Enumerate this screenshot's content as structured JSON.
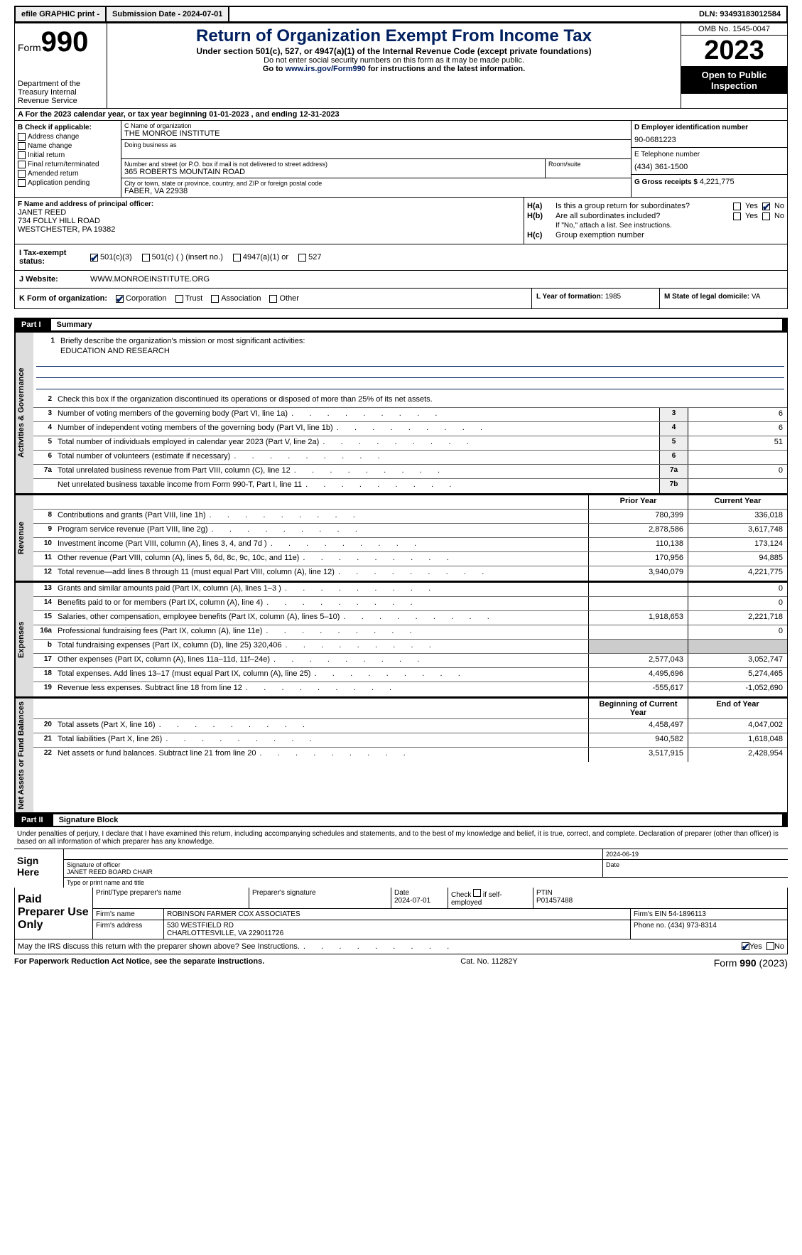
{
  "topbar": {
    "efile": "efile GRAPHIC print -",
    "subdate_lbl": "Submission Date - ",
    "subdate": "2024-07-01",
    "dln_lbl": "DLN: ",
    "dln": "93493183012584"
  },
  "header": {
    "form_word": "Form",
    "form_num": "990",
    "dept": "Department of the Treasury Internal Revenue Service",
    "title": "Return of Organization Exempt From Income Tax",
    "sub": "Under section 501(c), 527, or 4947(a)(1) of the Internal Revenue Code (except private foundations)",
    "note": "Do not enter social security numbers on this form as it may be made public.",
    "go_pre": "Go to ",
    "go_link": "www.irs.gov/Form990",
    "go_post": " for instructions and the latest information.",
    "omb": "OMB No. 1545-0047",
    "year": "2023",
    "open": "Open to Public Inspection"
  },
  "row_a": "A For the 2023 calendar year, or tax year beginning 01-01-2023    , and ending 12-31-2023",
  "box_b": {
    "lbl": "B Check if applicable:",
    "items": [
      "Address change",
      "Name change",
      "Initial return",
      "Final return/terminated",
      "Amended return",
      "Application pending"
    ]
  },
  "box_c": {
    "name_lbl": "C Name of organization",
    "name": "THE MONROE INSTITUTE",
    "dba_lbl": "Doing business as",
    "addr_lbl": "Number and street (or P.O. box if mail is not delivered to street address)",
    "addr": "365 ROBERTS MOUNTAIN ROAD",
    "room_lbl": "Room/suite",
    "city_lbl": "City or town, state or province, country, and ZIP or foreign postal code",
    "city": "FABER, VA  22938"
  },
  "box_d": {
    "ein_lbl": "D Employer identification number",
    "ein": "90-0681223",
    "tel_lbl": "E Telephone number",
    "tel": "(434) 361-1500",
    "gross_lbl": "G Gross receipts $ ",
    "gross": "4,221,775"
  },
  "box_f": {
    "lbl": "F  Name and address of principal officer:",
    "name": "JANET REED",
    "addr1": "734 FOLLY HILL ROAD",
    "addr2": "WESTCHESTER, PA  19382"
  },
  "box_h": {
    "ha_lbl": "H(a)",
    "ha_txt": "Is this a group return for subordinates?",
    "hb_lbl": "H(b)",
    "hb_txt": "Are all subordinates included?",
    "hb_note": "If \"No,\" attach a list. See instructions.",
    "hc_lbl": "H(c)",
    "hc_txt": "Group exemption number",
    "yes": "Yes",
    "no": "No"
  },
  "row_i": {
    "lbl": "I   Tax-exempt status:",
    "o1": "501(c)(3)",
    "o2": "501(c) (  ) (insert no.)",
    "o3": "4947(a)(1) or",
    "o4": "527"
  },
  "row_j": {
    "lbl": "J   Website:",
    "val": "WWW.MONROEINSTITUTE.ORG"
  },
  "row_k": {
    "lbl": "K Form of organization:",
    "o1": "Corporation",
    "o2": "Trust",
    "o3": "Association",
    "o4": "Other",
    "l_lbl": "L Year of formation: ",
    "l_val": "1985",
    "m_lbl": "M State of legal domicile: ",
    "m_val": "VA"
  },
  "part1": {
    "num": "Part I",
    "title": "Summary"
  },
  "vtabs": {
    "gov": "Activities & Governance",
    "rev": "Revenue",
    "exp": "Expenses",
    "net": "Net Assets or Fund Balances"
  },
  "summary": {
    "l1_lbl": "Briefly describe the organization's mission or most significant activities:",
    "l1_val": "EDUCATION AND RESEARCH",
    "l2": "Check this box      if the organization discontinued its operations or disposed of more than 25% of its net assets.",
    "rows_gov": [
      {
        "n": "3",
        "d": "Number of voting members of the governing body (Part VI, line 1a)",
        "box": "3",
        "v": "6"
      },
      {
        "n": "4",
        "d": "Number of independent voting members of the governing body (Part VI, line 1b)",
        "box": "4",
        "v": "6"
      },
      {
        "n": "5",
        "d": "Total number of individuals employed in calendar year 2023 (Part V, line 2a)",
        "box": "5",
        "v": "51"
      },
      {
        "n": "6",
        "d": "Total number of volunteers (estimate if necessary)",
        "box": "6",
        "v": ""
      },
      {
        "n": "7a",
        "d": "Total unrelated business revenue from Part VIII, column (C), line 12",
        "box": "7a",
        "v": "0"
      },
      {
        "n": "",
        "d": "Net unrelated business taxable income from Form 990-T, Part I, line 11",
        "box": "7b",
        "v": ""
      }
    ],
    "hdr_prior": "Prior Year",
    "hdr_curr": "Current Year",
    "rows_rev": [
      {
        "n": "8",
        "d": "Contributions and grants (Part VIII, line 1h)",
        "p": "780,399",
        "c": "336,018"
      },
      {
        "n": "9",
        "d": "Program service revenue (Part VIII, line 2g)",
        "p": "2,878,586",
        "c": "3,617,748"
      },
      {
        "n": "10",
        "d": "Investment income (Part VIII, column (A), lines 3, 4, and 7d )",
        "p": "110,138",
        "c": "173,124"
      },
      {
        "n": "11",
        "d": "Other revenue (Part VIII, column (A), lines 5, 6d, 8c, 9c, 10c, and 11e)",
        "p": "170,956",
        "c": "94,885"
      },
      {
        "n": "12",
        "d": "Total revenue—add lines 8 through 11 (must equal Part VIII, column (A), line 12)",
        "p": "3,940,079",
        "c": "4,221,775"
      }
    ],
    "rows_exp": [
      {
        "n": "13",
        "d": "Grants and similar amounts paid (Part IX, column (A), lines 1–3 )",
        "p": "",
        "c": "0"
      },
      {
        "n": "14",
        "d": "Benefits paid to or for members (Part IX, column (A), line 4)",
        "p": "",
        "c": "0"
      },
      {
        "n": "15",
        "d": "Salaries, other compensation, employee benefits (Part IX, column (A), lines 5–10)",
        "p": "1,918,653",
        "c": "2,221,718"
      },
      {
        "n": "16a",
        "d": "Professional fundraising fees (Part IX, column (A), line 11e)",
        "p": "",
        "c": "0"
      },
      {
        "n": "b",
        "d": "Total fundraising expenses (Part IX, column (D), line 25) 320,406",
        "p": "shade",
        "c": "shade"
      },
      {
        "n": "17",
        "d": "Other expenses (Part IX, column (A), lines 11a–11d, 11f–24e)",
        "p": "2,577,043",
        "c": "3,052,747"
      },
      {
        "n": "18",
        "d": "Total expenses. Add lines 13–17 (must equal Part IX, column (A), line 25)",
        "p": "4,495,696",
        "c": "5,274,465"
      },
      {
        "n": "19",
        "d": "Revenue less expenses. Subtract line 18 from line 12",
        "p": "-555,617",
        "c": "-1,052,690"
      }
    ],
    "hdr_beg": "Beginning of Current Year",
    "hdr_end": "End of Year",
    "rows_net": [
      {
        "n": "20",
        "d": "Total assets (Part X, line 16)",
        "p": "4,458,497",
        "c": "4,047,002"
      },
      {
        "n": "21",
        "d": "Total liabilities (Part X, line 26)",
        "p": "940,582",
        "c": "1,618,048"
      },
      {
        "n": "22",
        "d": "Net assets or fund balances. Subtract line 21 from line 20",
        "p": "3,517,915",
        "c": "2,428,954"
      }
    ]
  },
  "part2": {
    "num": "Part II",
    "title": "Signature Block"
  },
  "sig": {
    "decl": "Under penalties of perjury, I declare that I have examined this return, including accompanying schedules and statements, and to the best of my knowledge and belief, it is true, correct, and complete. Declaration of preparer (other than officer) is based on all information of which preparer has any knowledge.",
    "here": "Sign Here",
    "sig_lbl": "Signature of officer",
    "date_lbl": "Date",
    "date": "2024-06-19",
    "name": "JANET REED  BOARD CHAIR",
    "type_lbl": "Type or print name and title"
  },
  "prep": {
    "lbl": "Paid Preparer Use Only",
    "r1": {
      "c1": "Print/Type preparer's name",
      "c2": "Preparer's signature",
      "c3_lbl": "Date",
      "c3": "2024-07-01",
      "c4_lbl": "Check",
      "c4_txt": "if self-employed",
      "c5_lbl": "PTIN",
      "c5": "P01457488"
    },
    "r2": {
      "lbl": "Firm's name",
      "v": "ROBINSON FARMER COX ASSOCIATES",
      "ein_lbl": "Firm's EIN",
      "ein": "54-1896113"
    },
    "r3": {
      "lbl": "Firm's address",
      "v1": "530 WESTFIELD RD",
      "v2": "CHARLOTTESVILLE, VA  229011726",
      "ph_lbl": "Phone no.",
      "ph": "(434) 973-8314"
    }
  },
  "may": {
    "txt": "May the IRS discuss this return with the preparer shown above? See Instructions.",
    "yes": "Yes",
    "no": "No"
  },
  "footer": {
    "l": "For Paperwork Reduction Act Notice, see the separate instructions.",
    "m": "Cat. No. 11282Y",
    "r_pre": "Form ",
    "r_num": "990",
    "r_post": " (2023)"
  }
}
